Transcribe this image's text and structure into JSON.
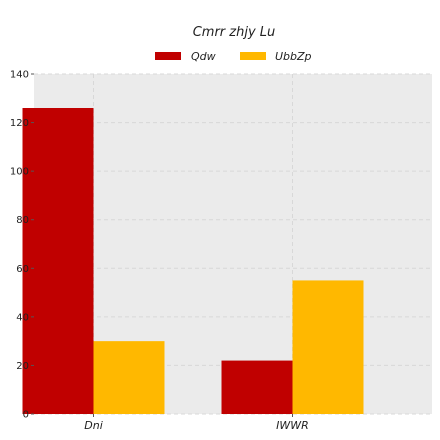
{
  "chart_data": {
    "type": "bar",
    "title": "Cmrr zhjy Lu",
    "categories": [
      "Dni",
      "IWWR"
    ],
    "series": [
      {
        "name": "Qdw",
        "values": [
          126,
          22
        ],
        "color": "#c00000"
      },
      {
        "name": "UbbZp",
        "values": [
          30,
          55
        ],
        "color": "#ffb800"
      }
    ],
    "ylim": [
      0,
      140
    ],
    "yticks": [
      0,
      20,
      40,
      60,
      80,
      100,
      120,
      140
    ],
    "grid": true,
    "legend": "top-center",
    "plot_background": "#ebebeb"
  }
}
